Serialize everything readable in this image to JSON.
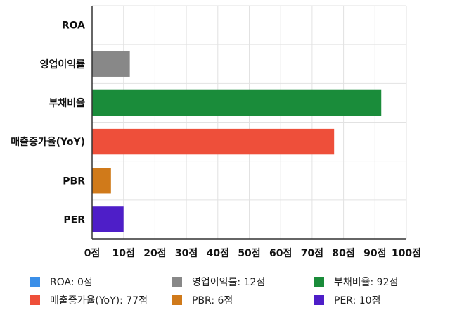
{
  "chart_data": {
    "type": "bar",
    "orientation": "horizontal",
    "grid": true,
    "legend_position": "bottom",
    "categories": [
      "ROA",
      "영업이익률",
      "부채비율",
      "매출증가율(YoY)",
      "PBR",
      "PER"
    ],
    "values": [
      0,
      12,
      92,
      77,
      6,
      10
    ],
    "colors": [
      "#3b8fe8",
      "#888888",
      "#1a8c3a",
      "#ee4f3a",
      "#d07a1a",
      "#4e1ec8"
    ],
    "xlim": [
      0,
      100
    ],
    "x_ticks": [
      "0점",
      "10점",
      "20점",
      "30점",
      "40점",
      "50점",
      "60점",
      "70점",
      "80점",
      "90점",
      "100점"
    ],
    "legend": [
      {
        "label": "ROA: 0점",
        "color": "#3b8fe8"
      },
      {
        "label": "영업이익률: 12점",
        "color": "#888888"
      },
      {
        "label": "부채비율: 92점",
        "color": "#1a8c3a"
      },
      {
        "label": "매출증가율(YoY): 77점",
        "color": "#ee4f3a"
      },
      {
        "label": "PBR: 6점",
        "color": "#d07a1a"
      },
      {
        "label": "PER: 10점",
        "color": "#4e1ec8"
      }
    ]
  }
}
